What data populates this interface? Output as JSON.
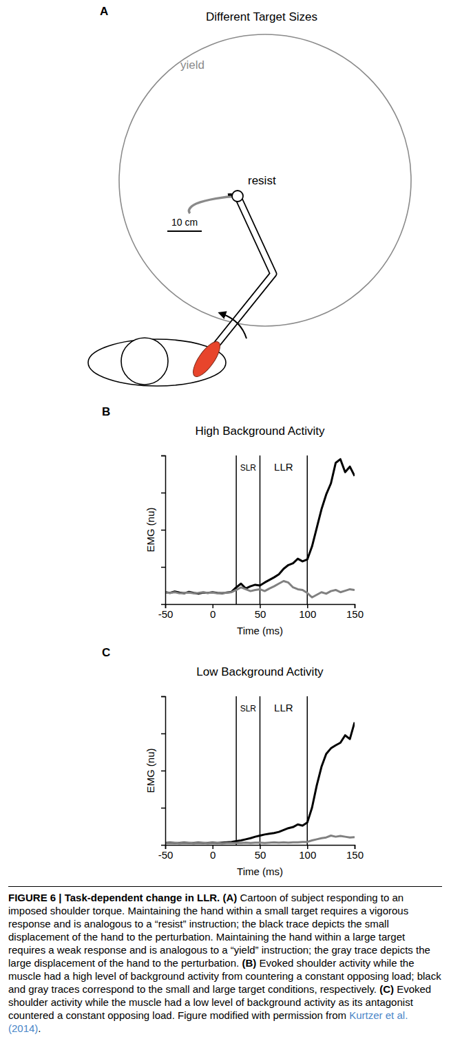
{
  "panel_a": {
    "panel_label": "A",
    "title": "Different Target Sizes",
    "annotations": [
      "yield",
      "resist",
      "10 cm"
    ]
  },
  "chart_data": [
    {
      "type": "line",
      "panel_label": "B",
      "title": "High Background Activity",
      "x_label": "Time (ms)",
      "y_label": "EMG (nu)",
      "annotations": [
        "SLR",
        "LLR"
      ],
      "vlines": [
        25,
        50,
        100
      ],
      "xlim": [
        -50,
        150
      ],
      "xticks": [
        -50,
        0,
        50,
        100,
        150
      ],
      "ylim": [
        0,
        4
      ],
      "yticks": [
        1,
        2,
        3,
        4
      ],
      "tick_labels": "x",
      "x": [
        -50,
        -45,
        -40,
        -35,
        -30,
        -25,
        -20,
        -15,
        -10,
        -5,
        0,
        5,
        10,
        15,
        20,
        25,
        30,
        35,
        40,
        45,
        50,
        55,
        60,
        65,
        70,
        75,
        80,
        85,
        90,
        95,
        100,
        105,
        110,
        115,
        120,
        125,
        130,
        135,
        140,
        145,
        150
      ],
      "series": [
        {
          "color": "#000000",
          "values": [
            0.32,
            0.3,
            0.34,
            0.31,
            0.29,
            0.33,
            0.3,
            0.28,
            0.31,
            0.3,
            0.32,
            0.3,
            0.29,
            0.31,
            0.33,
            0.45,
            0.55,
            0.42,
            0.48,
            0.52,
            0.5,
            0.58,
            0.65,
            0.72,
            0.8,
            0.95,
            1.05,
            1.1,
            1.22,
            1.15,
            1.2,
            1.55,
            2.05,
            2.55,
            2.95,
            3.25,
            3.8,
            3.9,
            3.55,
            3.7,
            3.45
          ]
        },
        {
          "color": "#808080",
          "values": [
            0.31,
            0.3,
            0.32,
            0.29,
            0.3,
            0.31,
            0.29,
            0.3,
            0.32,
            0.3,
            0.31,
            0.29,
            0.3,
            0.31,
            0.32,
            0.38,
            0.45,
            0.4,
            0.35,
            0.38,
            0.4,
            0.35,
            0.42,
            0.48,
            0.55,
            0.62,
            0.58,
            0.45,
            0.4,
            0.38,
            0.3,
            0.18,
            0.25,
            0.32,
            0.28,
            0.35,
            0.38,
            0.32,
            0.36,
            0.4,
            0.38
          ]
        }
      ]
    },
    {
      "type": "line",
      "panel_label": "C",
      "title": "Low Background Activity",
      "x_label": "Time (ms)",
      "y_label": "EMG (nu)",
      "annotations": [
        "SLR",
        "LLR"
      ],
      "vlines": [
        25,
        50,
        100
      ],
      "xlim": [
        -50,
        150
      ],
      "xticks": [
        -50,
        0,
        50,
        100,
        150
      ],
      "ylim": [
        0,
        4
      ],
      "yticks": [
        1,
        2,
        3,
        4
      ],
      "tick_labels": "x",
      "x": [
        -50,
        -45,
        -40,
        -35,
        -30,
        -25,
        -20,
        -15,
        -10,
        -5,
        0,
        5,
        10,
        15,
        20,
        25,
        30,
        35,
        40,
        45,
        50,
        55,
        60,
        65,
        70,
        75,
        80,
        85,
        90,
        95,
        100,
        105,
        110,
        115,
        120,
        125,
        130,
        135,
        140,
        145,
        150
      ],
      "series": [
        {
          "color": "#000000",
          "values": [
            0.05,
            0.06,
            0.05,
            0.05,
            0.06,
            0.05,
            0.05,
            0.06,
            0.05,
            0.05,
            0.06,
            0.05,
            0.06,
            0.07,
            0.08,
            0.1,
            0.12,
            0.15,
            0.18,
            0.22,
            0.25,
            0.28,
            0.3,
            0.32,
            0.35,
            0.4,
            0.45,
            0.48,
            0.55,
            0.52,
            0.6,
            1.0,
            1.6,
            2.1,
            2.45,
            2.6,
            2.68,
            2.75,
            2.95,
            2.85,
            3.3
          ]
        },
        {
          "color": "#808080",
          "values": [
            0.04,
            0.05,
            0.05,
            0.04,
            0.05,
            0.05,
            0.04,
            0.05,
            0.05,
            0.04,
            0.05,
            0.05,
            0.04,
            0.05,
            0.05,
            0.05,
            0.05,
            0.06,
            0.05,
            0.06,
            0.06,
            0.05,
            0.06,
            0.07,
            0.06,
            0.07,
            0.06,
            0.07,
            0.07,
            0.08,
            0.08,
            0.12,
            0.15,
            0.18,
            0.2,
            0.25,
            0.22,
            0.24,
            0.22,
            0.2,
            0.21
          ]
        }
      ]
    }
  ],
  "caption": [
    {
      "text": "FIGURE 6 | Task-dependent change in LLR.",
      "style": "bold"
    },
    {
      "text": " "
    },
    {
      "text": "(A)",
      "style": "bold"
    },
    {
      "text": " Cartoon of subject responding to an imposed shoulder torque. Maintaining the hand within a small target requires a vigorous response and is analogous to a “resist” instruction; the black trace depicts the small displacement of the hand to the perturbation. Maintaining the hand within a large target requires a weak response and is analogous to a “yield” instruction; the gray trace depicts the large displacement of the hand to the perturbation. "
    },
    {
      "text": "(B)",
      "style": "bold"
    },
    {
      "text": " Evoked shoulder activity while the muscle had a high level of background activity from countering a constant opposing load; black and gray traces correspond to the small and large target conditions, respectively. "
    },
    {
      "text": "(C)",
      "style": "bold"
    },
    {
      "text": " Evoked shoulder activity while the muscle had a low level of background activity as its antagonist countered a constant opposing load. Figure modified with permission from "
    },
    {
      "text": "Kurtzer et al. (2014)",
      "style": "link"
    },
    {
      "text": "."
    }
  ]
}
